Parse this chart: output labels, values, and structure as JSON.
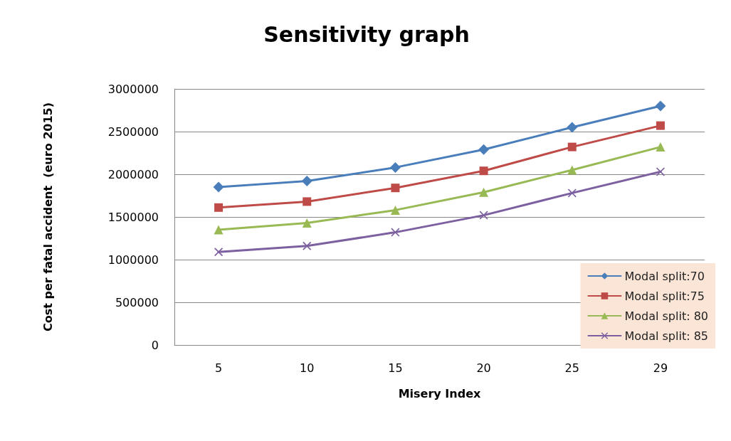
{
  "chart_data": {
    "type": "line",
    "title": "Sensitivity graph",
    "xlabel": "Misery Index",
    "ylabel": "Cost per fatal accident  (euro 2015)",
    "categories": [
      "5",
      "10",
      "15",
      "20",
      "25",
      "29"
    ],
    "series": [
      {
        "name": "Modal split:70",
        "color": "#4a7ebb",
        "marker": "diamond",
        "values": [
          1850000,
          1920000,
          2080000,
          2290000,
          2550000,
          2800000
        ]
      },
      {
        "name": "Modal split:75",
        "color": "#be4b48",
        "marker": "square",
        "values": [
          1610000,
          1680000,
          1840000,
          2040000,
          2320000,
          2570000
        ]
      },
      {
        "name": "Modal split: 80",
        "color": "#98b954",
        "marker": "triangle",
        "values": [
          1350000,
          1430000,
          1580000,
          1790000,
          2050000,
          2320000
        ]
      },
      {
        "name": "Modal split: 85",
        "color": "#7d60a0",
        "marker": "cross",
        "values": [
          1090000,
          1160000,
          1320000,
          1520000,
          1780000,
          2030000
        ]
      }
    ],
    "ylim": [
      0,
      3000000
    ],
    "yticks": [
      0,
      500000,
      1000000,
      1500000,
      2000000,
      2500000,
      3000000
    ],
    "grid": "y",
    "legend": "bottom right",
    "line_style": "solid"
  }
}
